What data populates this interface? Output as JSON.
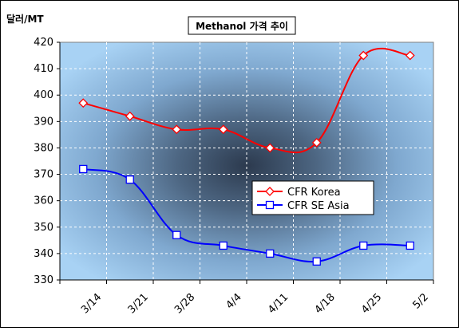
{
  "chart_data": {
    "type": "line",
    "title": "Methanol 가격 추이",
    "ylabel": "달러/MT",
    "xlabel": "",
    "categories": [
      "3/14",
      "3/21",
      "3/28",
      "4/4",
      "4/11",
      "4/18",
      "4/25",
      "5/2"
    ],
    "ylim": [
      330,
      420
    ],
    "yticks": [
      330,
      340,
      350,
      360,
      370,
      380,
      390,
      400,
      410,
      420
    ],
    "grid": true,
    "legend_position": "center-right",
    "series": [
      {
        "name": "CFR Korea",
        "color": "#ff0000",
        "marker": "diamond",
        "values": [
          397,
          392,
          387,
          387,
          380,
          382,
          415,
          415
        ]
      },
      {
        "name": "CFR SE Asia",
        "color": "#0000ff",
        "marker": "square",
        "values": [
          372,
          368,
          347,
          343,
          340,
          337,
          343,
          343
        ]
      }
    ]
  }
}
